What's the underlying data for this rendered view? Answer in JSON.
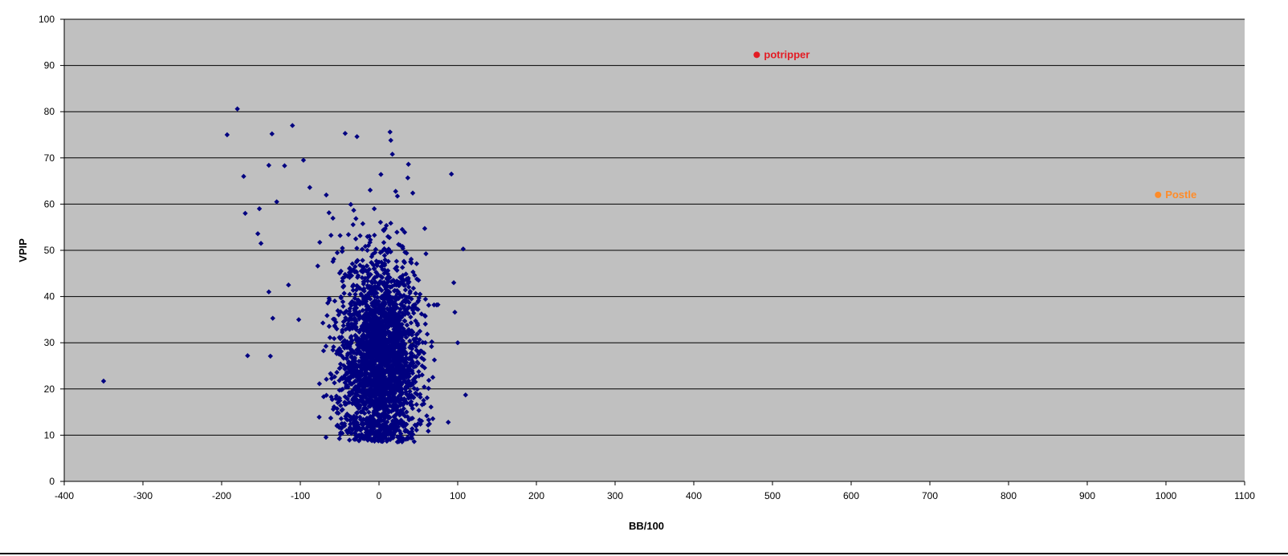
{
  "chart_data": {
    "type": "scatter",
    "title": "",
    "xlabel": "BB/100",
    "ylabel": "VPIP",
    "xlim": [
      -400,
      1100
    ],
    "ylim": [
      0,
      100
    ],
    "xticks": [
      -400,
      -300,
      -200,
      -100,
      0,
      100,
      200,
      300,
      400,
      500,
      600,
      700,
      800,
      900,
      1000,
      1100
    ],
    "yticks": [
      0,
      10,
      20,
      30,
      40,
      50,
      60,
      70,
      80,
      90,
      100
    ],
    "grid": "horizontal",
    "plot_background": "#c0c0c0",
    "series": [
      {
        "color": "#000080",
        "marker": "diamond",
        "cluster": {
          "approx_points": 2600,
          "center_x": 0,
          "center_y": 27,
          "sd_x": 28,
          "sd_y": 11,
          "y_min": 8.5,
          "y_max": 76
        },
        "outliers": [
          [
            -350,
            21.7
          ],
          [
            -180,
            80.6
          ],
          [
            -193,
            75.0
          ],
          [
            -110,
            77.0
          ],
          [
            -136,
            75.2
          ],
          [
            -172,
            66.0
          ],
          [
            -140,
            68.4
          ],
          [
            -120,
            68.3
          ],
          [
            -170,
            58.0
          ],
          [
            -152,
            59.0
          ],
          [
            -154,
            53.6
          ],
          [
            -150,
            51.5
          ],
          [
            -130,
            60.5
          ],
          [
            -135,
            35.3
          ],
          [
            -140,
            41.0
          ],
          [
            -167,
            27.2
          ],
          [
            -138,
            27.1
          ],
          [
            -96,
            69.5
          ],
          [
            -88,
            63.6
          ],
          [
            -43,
            75.3
          ],
          [
            -28,
            74.6
          ],
          [
            14,
            75.6
          ],
          [
            15,
            73.8
          ],
          [
            17,
            70.8
          ],
          [
            92,
            66.5
          ],
          [
            107,
            50.3
          ],
          [
            110,
            18.7
          ],
          [
            100,
            30.0
          ],
          [
            95,
            43.0
          ],
          [
            88,
            12.8
          ],
          [
            -76,
            13.9
          ],
          [
            -9,
            8.8
          ],
          [
            10,
            8.7
          ],
          [
            -102,
            35.0
          ],
          [
            -115,
            42.5
          ]
        ]
      }
    ],
    "annotations": [
      {
        "label": "potripper",
        "x": 480,
        "y": 92.3,
        "color": "#e31b23"
      },
      {
        "label": "Postle",
        "x": 990,
        "y": 62.0,
        "color": "#ff8c29"
      }
    ]
  }
}
